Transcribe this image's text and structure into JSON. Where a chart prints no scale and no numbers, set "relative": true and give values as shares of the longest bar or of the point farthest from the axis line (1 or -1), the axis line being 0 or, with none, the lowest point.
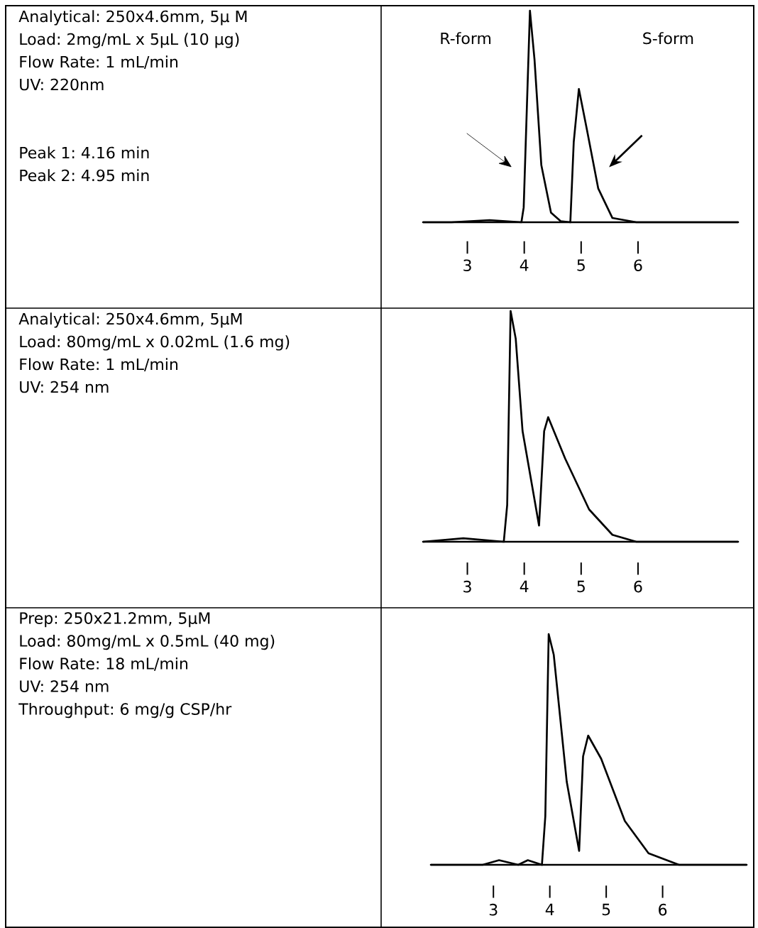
{
  "chart_data": [
    {
      "type": "other",
      "annotations": [
        "Analytical: 250x4.6mm, 5µ M",
        "Load: 2mg/mL x 5µL (10 μg)",
        "Flow Rate: 1 mL/min",
        "UV: 220nm",
        "Peak 1: 4.16 min",
        "Peak 2: 4.95 min"
      ]
    },
    {
      "type": "line",
      "relative": true,
      "xlim": [
        2.22,
        7.76
      ],
      "xticks": [
        3,
        4,
        5,
        6
      ],
      "x": [
        2.22,
        2.72,
        3.39,
        3.95,
        3.99,
        4.1,
        4.18,
        4.3,
        4.47,
        4.64,
        4.81,
        4.87,
        4.96,
        5.1,
        5.3,
        5.55,
        5.97,
        7.76
      ],
      "series": [
        {
          "color": "#000000",
          "values": [
            0,
            0,
            0.01,
            0,
            0.07,
            1,
            0.77,
            0.27,
            0.045,
            0.005,
            0,
            0.38,
            0.63,
            0.44,
            0.16,
            0.02,
            0,
            0
          ]
        }
      ],
      "annotations": [
        "R-form",
        "S-form"
      ]
    },
    {
      "type": "other",
      "annotations": [
        "Analytical: 250x4.6mm, 5µM",
        "Load: 80mg/mL x 0.02mL (1.6 mg)",
        "Flow Rate: 1 mL/min",
        "UV: 254 nm"
      ]
    },
    {
      "type": "line",
      "relative": true,
      "xlim": [
        2.22,
        7.76
      ],
      "xticks": [
        3,
        4,
        5,
        6
      ],
      "x": [
        2.22,
        2.93,
        3.64,
        3.7,
        3.76,
        3.85,
        3.97,
        4.26,
        4.35,
        4.42,
        4.72,
        5.14,
        5.55,
        5.97,
        7.76
      ],
      "series": [
        {
          "color": "#000000",
          "values": [
            0,
            0.015,
            0,
            0.16,
            1,
            0.88,
            0.48,
            0.07,
            0.48,
            0.54,
            0.36,
            0.14,
            0.03,
            0,
            0
          ]
        }
      ]
    },
    {
      "type": "other",
      "annotations": [
        "Prep: 250x21.2mm, 5µM",
        "Load: 80mg/mL x 0.5mL (40 mg)",
        "Flow Rate: 18 mL/min",
        "UV: 254 nm",
        "Throughput:  6 mg/g CSP/hr"
      ]
    },
    {
      "type": "line",
      "relative": true,
      "xlim": [
        1.89,
        7.49
      ],
      "xticks": [
        3,
        4,
        5,
        6
      ],
      "x": [
        1.89,
        2.81,
        3.1,
        3.44,
        3.61,
        3.86,
        3.92,
        3.98,
        4.07,
        4.3,
        4.52,
        4.59,
        4.68,
        4.91,
        5.33,
        5.75,
        6.29,
        7.49
      ],
      "series": [
        {
          "color": "#000000",
          "values": [
            0,
            0,
            0.02,
            0,
            0.02,
            0,
            0.21,
            1,
            0.91,
            0.36,
            0.06,
            0.47,
            0.56,
            0.46,
            0.19,
            0.05,
            0,
            0
          ]
        }
      ]
    }
  ]
}
